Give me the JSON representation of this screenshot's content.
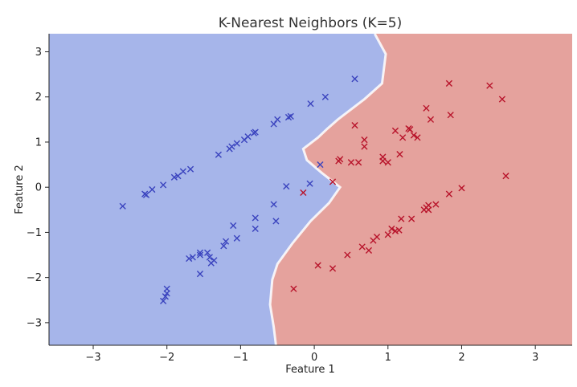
{
  "chart_data": {
    "type": "scatter",
    "title": "K-Nearest Neighbors (K=5)",
    "xlabel": "Feature 1",
    "ylabel": "Feature 2",
    "xlim": [
      -3.6,
      3.5
    ],
    "ylim": [
      -3.5,
      3.4
    ],
    "xticks": [
      -3,
      -2,
      -1,
      0,
      1,
      2,
      3
    ],
    "yticks": [
      -3,
      -2,
      -1,
      0,
      1,
      2,
      3
    ],
    "grid": false,
    "marker": "x",
    "decision_regions": {
      "class_0_color": "#a6b5ea",
      "class_1_color": "#e5a29d",
      "boundary": [
        [
          0.82,
          3.4
        ],
        [
          0.97,
          2.95
        ],
        [
          0.92,
          2.3
        ],
        [
          0.68,
          1.95
        ],
        [
          0.32,
          1.5
        ],
        [
          0.18,
          1.3
        ],
        [
          0.05,
          1.1
        ],
        [
          -0.15,
          0.85
        ],
        [
          -0.1,
          0.6
        ],
        [
          0.1,
          0.32
        ],
        [
          0.35,
          0.0
        ],
        [
          0.2,
          -0.35
        ],
        [
          -0.05,
          -0.75
        ],
        [
          -0.3,
          -1.25
        ],
        [
          -0.5,
          -1.7
        ],
        [
          -0.57,
          -2.05
        ],
        [
          -0.6,
          -2.6
        ],
        [
          -0.55,
          -3.1
        ],
        [
          -0.52,
          -3.5
        ]
      ]
    },
    "series": [
      {
        "color": "#3a43be",
        "points": [
          [
            -2.6,
            -0.42
          ],
          [
            -2.3,
            -0.15
          ],
          [
            -2.28,
            -0.17
          ],
          [
            -2.2,
            -0.05
          ],
          [
            -2.05,
            0.05
          ],
          [
            -1.9,
            0.22
          ],
          [
            -1.85,
            0.25
          ],
          [
            -1.78,
            0.35
          ],
          [
            -1.68,
            0.4
          ],
          [
            -1.3,
            0.72
          ],
          [
            -1.15,
            0.85
          ],
          [
            -1.12,
            0.9
          ],
          [
            -1.05,
            0.97
          ],
          [
            -0.95,
            1.05
          ],
          [
            -0.9,
            1.12
          ],
          [
            -0.82,
            1.2
          ],
          [
            -0.8,
            1.22
          ],
          [
            -0.55,
            1.4
          ],
          [
            -0.5,
            1.5
          ],
          [
            -0.35,
            1.55
          ],
          [
            -0.32,
            1.57
          ],
          [
            -0.05,
            1.85
          ],
          [
            0.15,
            2.0
          ],
          [
            0.55,
            2.4
          ],
          [
            0.08,
            0.5
          ],
          [
            -0.06,
            0.08
          ],
          [
            -0.38,
            0.02
          ],
          [
            -0.55,
            -0.38
          ],
          [
            -0.52,
            -0.75
          ],
          [
            -0.8,
            -0.68
          ],
          [
            -0.8,
            -0.92
          ],
          [
            -1.1,
            -0.85
          ],
          [
            -1.05,
            -1.13
          ],
          [
            -1.2,
            -1.2
          ],
          [
            -1.23,
            -1.3
          ],
          [
            -1.7,
            -1.58
          ],
          [
            -1.65,
            -1.55
          ],
          [
            -1.55,
            -1.45
          ],
          [
            -1.55,
            -1.5
          ],
          [
            -1.45,
            -1.45
          ],
          [
            -1.42,
            -1.55
          ],
          [
            -1.4,
            -1.68
          ],
          [
            -1.36,
            -1.62
          ],
          [
            -1.55,
            -1.92
          ],
          [
            -2.0,
            -2.25
          ],
          [
            -2.0,
            -2.35
          ],
          [
            -2.02,
            -2.42
          ],
          [
            -2.05,
            -2.52
          ]
        ]
      },
      {
        "color": "#b8132a",
        "points": [
          [
            1.83,
            2.3
          ],
          [
            2.38,
            2.25
          ],
          [
            2.55,
            1.95
          ],
          [
            1.52,
            1.75
          ],
          [
            1.85,
            1.6
          ],
          [
            1.58,
            1.5
          ],
          [
            0.55,
            1.37
          ],
          [
            1.1,
            1.25
          ],
          [
            1.28,
            1.3
          ],
          [
            1.3,
            1.28
          ],
          [
            1.4,
            1.1
          ],
          [
            1.35,
            1.15
          ],
          [
            1.2,
            1.1
          ],
          [
            0.68,
            1.05
          ],
          [
            0.68,
            0.9
          ],
          [
            1.16,
            0.73
          ],
          [
            0.35,
            0.62
          ],
          [
            0.33,
            0.58
          ],
          [
            0.5,
            0.55
          ],
          [
            0.93,
            0.67
          ],
          [
            0.93,
            0.58
          ],
          [
            1.0,
            0.55
          ],
          [
            0.6,
            0.55
          ],
          [
            2.6,
            0.25
          ],
          [
            0.25,
            0.12
          ],
          [
            2.0,
            -0.02
          ],
          [
            -0.15,
            -0.12
          ],
          [
            1.83,
            -0.15
          ],
          [
            1.65,
            -0.38
          ],
          [
            1.55,
            -0.4
          ],
          [
            1.52,
            -0.45
          ],
          [
            1.49,
            -0.5
          ],
          [
            1.55,
            -0.5
          ],
          [
            1.18,
            -0.7
          ],
          [
            1.32,
            -0.7
          ],
          [
            1.05,
            -0.92
          ],
          [
            1.1,
            -0.97
          ],
          [
            1.15,
            -0.95
          ],
          [
            1.0,
            -1.05
          ],
          [
            0.85,
            -1.1
          ],
          [
            0.8,
            -1.18
          ],
          [
            0.65,
            -1.32
          ],
          [
            0.74,
            -1.4
          ],
          [
            0.45,
            -1.5
          ],
          [
            0.05,
            -1.73
          ],
          [
            0.25,
            -1.8
          ],
          [
            -0.28,
            -2.25
          ]
        ]
      }
    ]
  }
}
